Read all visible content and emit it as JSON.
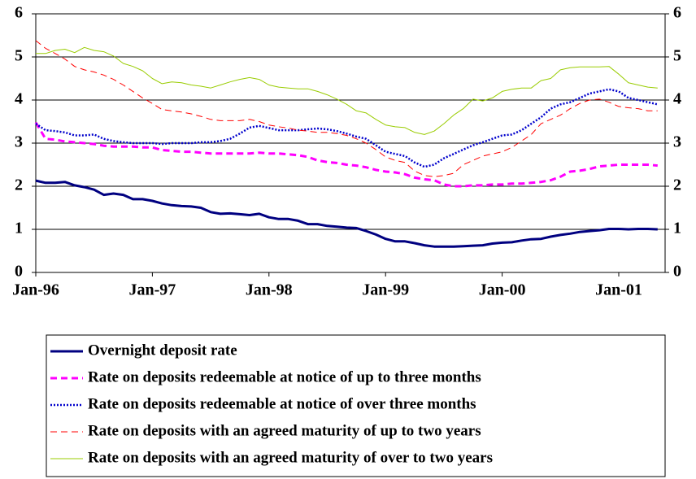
{
  "chart_data": {
    "type": "line",
    "categories": [
      "Jan-96",
      null,
      null,
      null,
      null,
      null,
      null,
      null,
      null,
      null,
      null,
      null,
      "Jan-97",
      null,
      null,
      null,
      null,
      null,
      null,
      null,
      null,
      null,
      null,
      null,
      "Jan-98",
      null,
      null,
      null,
      null,
      null,
      null,
      null,
      null,
      null,
      null,
      null,
      "Jan-99",
      null,
      null,
      null,
      null,
      null,
      null,
      null,
      null,
      null,
      null,
      null,
      "Jan-00",
      null,
      null,
      null,
      null,
      null,
      null,
      null,
      null,
      null,
      null,
      null,
      "Jan-01",
      null,
      null,
      null,
      null
    ],
    "ylim": [
      0,
      6
    ],
    "yticks": [
      0,
      1,
      2,
      3,
      4,
      5,
      6
    ],
    "y2lim": [
      0,
      6
    ],
    "y2ticks": [
      0,
      1,
      2,
      3,
      4,
      5,
      6
    ],
    "grid": true,
    "legend": "bottom",
    "series": [
      {
        "name": "Overnight deposit rate",
        "color": "#000080",
        "dash": "solid",
        "width": 3,
        "values": [
          2.13,
          2.08,
          2.08,
          2.1,
          2.02,
          1.98,
          1.92,
          1.8,
          1.83,
          1.8,
          1.7,
          1.7,
          1.66,
          1.6,
          1.56,
          1.54,
          1.53,
          1.5,
          1.4,
          1.36,
          1.37,
          1.35,
          1.33,
          1.36,
          1.28,
          1.24,
          1.24,
          1.2,
          1.12,
          1.12,
          1.08,
          1.06,
          1.04,
          1.03,
          0.96,
          0.88,
          0.78,
          0.72,
          0.72,
          0.68,
          0.63,
          0.6,
          0.6,
          0.6,
          0.61,
          0.62,
          0.63,
          0.67,
          0.69,
          0.7,
          0.74,
          0.77,
          0.78,
          0.83,
          0.87,
          0.9,
          0.94,
          0.96,
          0.98,
          1.01,
          1.01,
          1.0,
          1.01,
          1.01,
          1.0
        ]
      },
      {
        "name": "Rate on deposits redeemable at notice of up to three months",
        "color": "#ff00ff",
        "dash": "dashed",
        "width": 3,
        "values": [
          3.48,
          3.1,
          3.08,
          3.04,
          3.02,
          3.0,
          2.98,
          2.94,
          2.92,
          2.92,
          2.92,
          2.9,
          2.9,
          2.84,
          2.82,
          2.8,
          2.8,
          2.78,
          2.76,
          2.76,
          2.76,
          2.76,
          2.76,
          2.78,
          2.76,
          2.76,
          2.74,
          2.72,
          2.68,
          2.6,
          2.56,
          2.54,
          2.5,
          2.48,
          2.44,
          2.38,
          2.34,
          2.32,
          2.28,
          2.2,
          2.16,
          2.14,
          2.04,
          2.0,
          2.0,
          2.02,
          2.02,
          2.04,
          2.04,
          2.06,
          2.06,
          2.08,
          2.1,
          2.14,
          2.22,
          2.34,
          2.36,
          2.4,
          2.46,
          2.48,
          2.5,
          2.5,
          2.5,
          2.5,
          2.48
        ]
      },
      {
        "name": "Rate on deposits redeemable at notice of over three months",
        "color": "#0000cc",
        "dash": "dotted",
        "width": 2.5,
        "values": [
          3.45,
          3.3,
          3.28,
          3.25,
          3.18,
          3.18,
          3.2,
          3.1,
          3.05,
          3.02,
          3.0,
          3.0,
          3.0,
          2.98,
          3.0,
          3.0,
          3.0,
          3.02,
          3.02,
          3.05,
          3.1,
          3.22,
          3.36,
          3.4,
          3.35,
          3.3,
          3.3,
          3.3,
          3.32,
          3.34,
          3.32,
          3.28,
          3.22,
          3.15,
          3.1,
          2.95,
          2.8,
          2.75,
          2.7,
          2.55,
          2.45,
          2.5,
          2.65,
          2.75,
          2.85,
          2.95,
          3.02,
          3.1,
          3.18,
          3.2,
          3.3,
          3.45,
          3.6,
          3.8,
          3.9,
          3.95,
          4.05,
          4.15,
          4.2,
          4.25,
          4.2,
          4.05,
          4.0,
          3.95,
          3.9
        ]
      },
      {
        "name": "Rate on deposits with an agreed maturity of up to two years",
        "color": "#ff0000",
        "dash": "dashed",
        "width": 1,
        "values": [
          5.38,
          5.2,
          5.08,
          4.95,
          4.78,
          4.7,
          4.65,
          4.58,
          4.48,
          4.35,
          4.2,
          4.05,
          3.92,
          3.78,
          3.75,
          3.72,
          3.68,
          3.62,
          3.55,
          3.52,
          3.52,
          3.52,
          3.55,
          3.5,
          3.42,
          3.38,
          3.35,
          3.3,
          3.28,
          3.25,
          3.25,
          3.22,
          3.18,
          3.1,
          3.0,
          2.85,
          2.68,
          2.6,
          2.55,
          2.35,
          2.25,
          2.22,
          2.25,
          2.3,
          2.5,
          2.6,
          2.7,
          2.75,
          2.8,
          2.9,
          3.05,
          3.2,
          3.45,
          3.55,
          3.65,
          3.8,
          3.92,
          4.0,
          4.02,
          3.95,
          3.85,
          3.82,
          3.8,
          3.75,
          3.75
        ]
      },
      {
        "name": "Rate on deposits with an agreed maturity of over to two years",
        "color": "#99cc00",
        "dash": "solid",
        "width": 1,
        "values": [
          5.08,
          5.08,
          5.15,
          5.18,
          5.1,
          5.22,
          5.15,
          5.12,
          5.02,
          4.85,
          4.78,
          4.68,
          4.5,
          4.38,
          4.42,
          4.4,
          4.35,
          4.32,
          4.28,
          4.35,
          4.42,
          4.48,
          4.52,
          4.48,
          4.35,
          4.3,
          4.28,
          4.26,
          4.26,
          4.2,
          4.12,
          4.02,
          3.9,
          3.75,
          3.7,
          3.55,
          3.42,
          3.38,
          3.36,
          3.25,
          3.2,
          3.28,
          3.45,
          3.65,
          3.8,
          4.02,
          3.98,
          4.05,
          4.2,
          4.25,
          4.28,
          4.28,
          4.45,
          4.5,
          4.7,
          4.75,
          4.77,
          4.77,
          4.77,
          4.78,
          4.6,
          4.4,
          4.35,
          4.3,
          4.28
        ]
      }
    ]
  }
}
